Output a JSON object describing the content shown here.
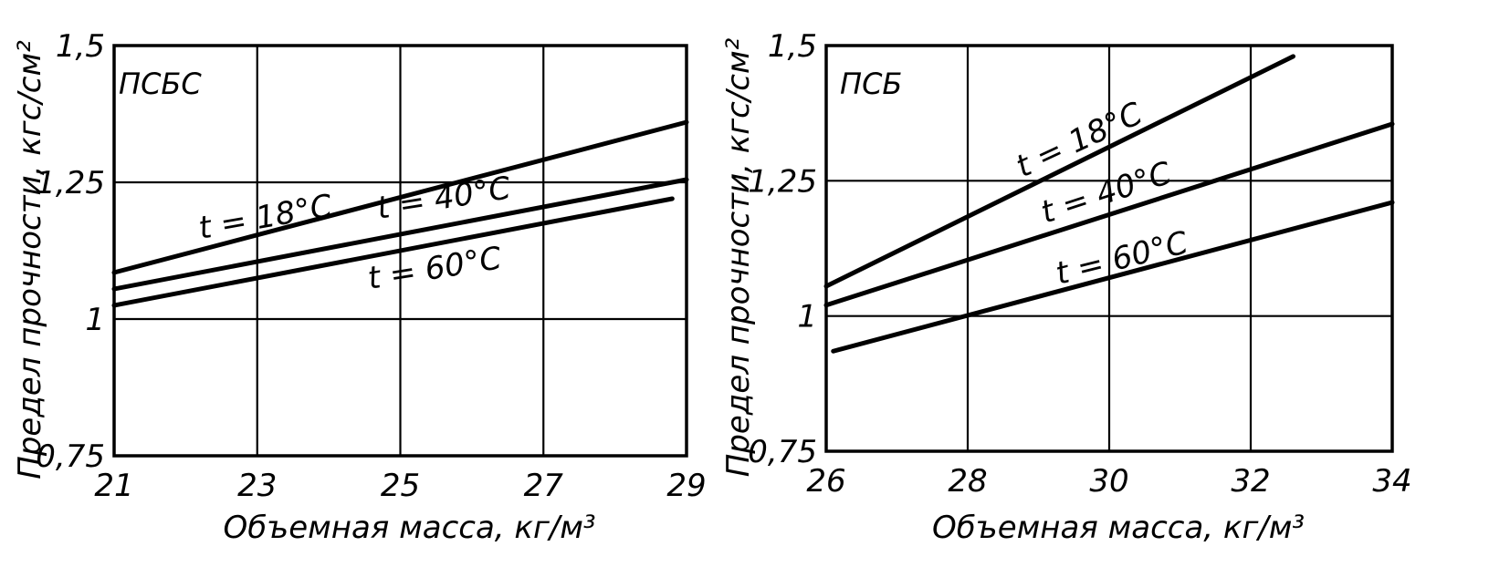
{
  "chart_data": [
    {
      "type": "line",
      "panel_label": "ПСБС",
      "xlabel": "Объемная масса, кг/м³",
      "ylabel": "Предел прочности, кгс/см²",
      "xlim": [
        21,
        29
      ],
      "ylim": [
        0.75,
        1.5
      ],
      "xticks": [
        21,
        23,
        25,
        27,
        29
      ],
      "yticks": [
        0.75,
        1,
        1.25,
        1.5
      ],
      "xtick_labels": [
        "21",
        "23",
        "25",
        "27",
        "29"
      ],
      "ytick_labels": [
        "0,75",
        "1",
        "1,25",
        "1,5"
      ],
      "grid": true,
      "series": [
        {
          "name": "t = 18°C",
          "x": [
            21.0,
            29.0
          ],
          "y": [
            1.085,
            1.36
          ]
        },
        {
          "name": "t = 40°C",
          "x": [
            21.0,
            29.0
          ],
          "y": [
            1.055,
            1.255
          ]
        },
        {
          "name": "t = 60°C",
          "x": [
            21.0,
            28.8
          ],
          "y": [
            1.025,
            1.22
          ]
        }
      ]
    },
    {
      "type": "line",
      "panel_label": "ПСБ",
      "xlabel": "Объемная масса, кг/м³",
      "ylabel": "Предел прочности, кгс/см²",
      "xlim": [
        26,
        34
      ],
      "ylim": [
        0.75,
        1.5
      ],
      "xticks": [
        26,
        28,
        30,
        32,
        34
      ],
      "yticks": [
        0.75,
        1,
        1.25,
        1.5
      ],
      "xtick_labels": [
        "26",
        "28",
        "30",
        "32",
        "34"
      ],
      "ytick_labels": [
        "0,75",
        "1",
        "1,25",
        "1,5"
      ],
      "grid": true,
      "series": [
        {
          "name": "t = 18°C",
          "x": [
            26.0,
            32.6
          ],
          "y": [
            1.055,
            1.48
          ]
        },
        {
          "name": "t = 40°C",
          "x": [
            26.0,
            34.0
          ],
          "y": [
            1.02,
            1.355
          ]
        },
        {
          "name": "t = 60°C",
          "x": [
            26.1,
            34.0
          ],
          "y": [
            0.935,
            1.21
          ]
        }
      ]
    }
  ]
}
